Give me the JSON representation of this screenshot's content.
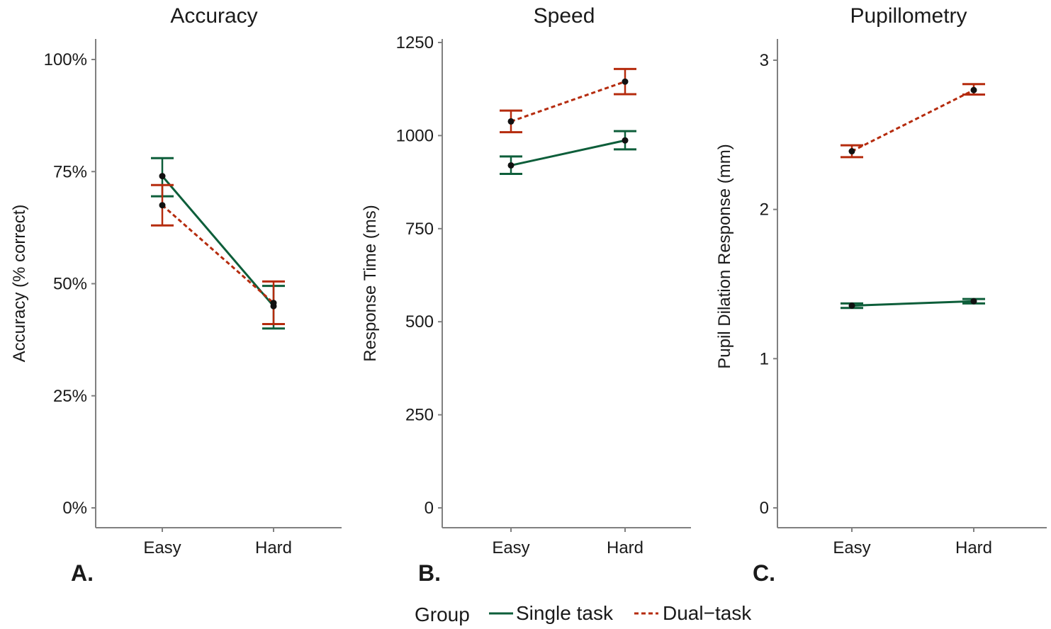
{
  "colors": {
    "single": "#0d5e3a",
    "dual": "#b52b0d",
    "point": "#111111",
    "axis": "#808080"
  },
  "legend": {
    "title": "Group",
    "items": [
      {
        "key": "single",
        "label": "Single task",
        "linestyle": "solid"
      },
      {
        "key": "dual",
        "label": "Dual−task",
        "linestyle": "dashed"
      }
    ]
  },
  "chart_data": [
    {
      "type": "line",
      "title": "Accuracy",
      "panel_label": "A.",
      "ylabel": "Accuracy (% correct)",
      "xlabel": "",
      "categories": [
        "Easy",
        "Hard"
      ],
      "ylim": [
        0,
        1.05
      ],
      "yticks": [
        0,
        0.25,
        0.5,
        0.75,
        1.0
      ],
      "ytick_labels": [
        "0%",
        "25%",
        "50%",
        "75%",
        "100%"
      ],
      "grid": false,
      "series": [
        {
          "key": "single",
          "name": "Single task",
          "values": [
            0.74,
            0.45
          ],
          "err_low": [
            0.695,
            0.4
          ],
          "err_high": [
            0.78,
            0.495
          ]
        },
        {
          "key": "dual",
          "name": "Dual−task",
          "values": [
            0.675,
            0.457
          ],
          "err_low": [
            0.63,
            0.41
          ],
          "err_high": [
            0.72,
            0.505
          ]
        }
      ]
    },
    {
      "type": "line",
      "title": "Speed",
      "panel_label": "B.",
      "ylabel": "Response Time (ms)",
      "xlabel": "",
      "categories": [
        "Easy",
        "Hard"
      ],
      "ylim": [
        0,
        1250
      ],
      "yticks": [
        0,
        250,
        500,
        750,
        1000,
        1250
      ],
      "ytick_labels": [
        "0",
        "250",
        "500",
        "750",
        "1000",
        "1250"
      ],
      "grid": false,
      "series": [
        {
          "key": "single",
          "name": "Single task",
          "values": [
            920,
            987
          ],
          "err_low": [
            897,
            963
          ],
          "err_high": [
            944,
            1012
          ]
        },
        {
          "key": "dual",
          "name": "Dual−task",
          "values": [
            1038,
            1145
          ],
          "err_low": [
            1009,
            1111
          ],
          "err_high": [
            1067,
            1179
          ]
        }
      ]
    },
    {
      "type": "line",
      "title": "Pupillometry",
      "panel_label": "C.",
      "ylabel": "Pupil Dilation Response (mm)",
      "xlabel": "",
      "categories": [
        "Easy",
        "Hard"
      ],
      "ylim": [
        0,
        3
      ],
      "yticks": [
        0,
        1,
        2,
        3
      ],
      "ytick_labels": [
        "0",
        "1",
        "2",
        "3"
      ],
      "grid": false,
      "series": [
        {
          "key": "single",
          "name": "Single task",
          "values": [
            1.355,
            1.385
          ],
          "err_low": [
            1.34,
            1.37
          ],
          "err_high": [
            1.37,
            1.4
          ]
        },
        {
          "key": "dual",
          "name": "Dual−task",
          "values": [
            2.39,
            2.8
          ],
          "err_low": [
            2.35,
            2.77
          ],
          "err_high": [
            2.43,
            2.84
          ]
        }
      ]
    }
  ]
}
